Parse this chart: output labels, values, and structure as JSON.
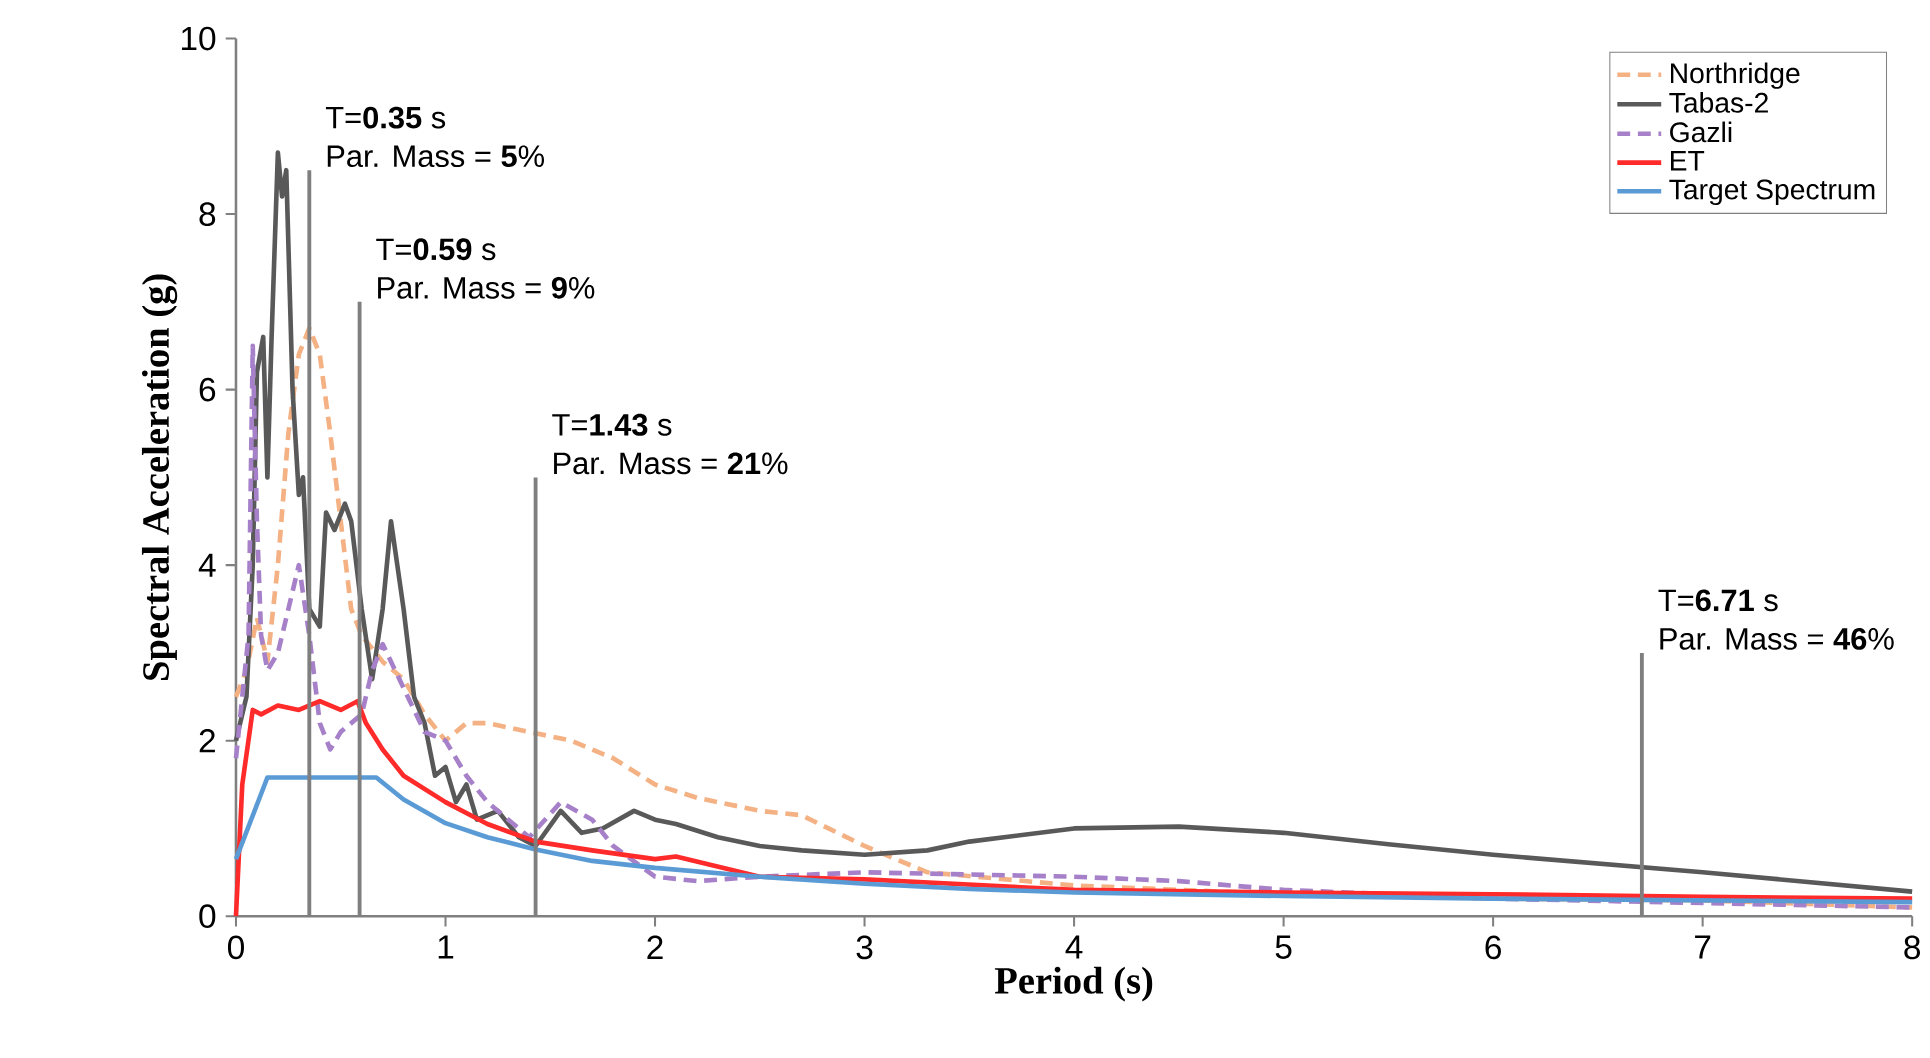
{
  "chart_data": {
    "type": "line",
    "xlabel": "Period (s)",
    "ylabel": "Spectral Acceleration (g)",
    "xlim": [
      0,
      8
    ],
    "xticks": [
      0,
      1,
      2,
      3,
      4,
      5,
      6,
      7,
      8
    ],
    "ylim": [
      0,
      10
    ],
    "yticks": [
      0,
      2,
      4,
      6,
      8,
      10
    ],
    "grid": false,
    "legend": "top right",
    "marker": "none",
    "series": [
      {
        "name": "Northridge",
        "color": "#f4b183",
        "line_style": "dashed",
        "x": [
          0,
          0.05,
          0.1,
          0.15,
          0.2,
          0.25,
          0.3,
          0.35,
          0.4,
          0.45,
          0.5,
          0.55,
          0.6,
          0.7,
          0.8,
          0.9,
          1.0,
          1.1,
          1.2,
          1.4,
          1.6,
          1.8,
          2.0,
          2.2,
          2.5,
          2.7,
          3.0,
          3.3,
          4.0,
          5.0,
          6.0,
          7.0,
          8.0
        ],
        "values": [
          2.5,
          2.8,
          3.4,
          2.9,
          4.0,
          5.5,
          6.4,
          6.7,
          6.4,
          5.5,
          4.5,
          3.5,
          3.2,
          2.9,
          2.7,
          2.3,
          2.0,
          2.2,
          2.2,
          2.1,
          2.0,
          1.8,
          1.5,
          1.35,
          1.2,
          1.15,
          0.8,
          0.5,
          0.35,
          0.25,
          0.2,
          0.18,
          0.1
        ]
      },
      {
        "name": "Tabas-2",
        "color": "#595959",
        "line_style": "solid",
        "x": [
          0,
          0.05,
          0.08,
          0.1,
          0.13,
          0.15,
          0.17,
          0.2,
          0.22,
          0.24,
          0.27,
          0.3,
          0.32,
          0.35,
          0.4,
          0.43,
          0.47,
          0.52,
          0.55,
          0.6,
          0.65,
          0.7,
          0.74,
          0.8,
          0.85,
          0.9,
          0.95,
          1.0,
          1.05,
          1.1,
          1.15,
          1.25,
          1.35,
          1.43,
          1.55,
          1.65,
          1.75,
          1.9,
          2.0,
          2.1,
          2.3,
          2.5,
          2.7,
          3.0,
          3.3,
          3.5,
          4.0,
          4.5,
          5.0,
          5.5,
          6.0,
          7.0,
          8.0
        ],
        "values": [
          2.0,
          2.5,
          4.0,
          6.2,
          6.6,
          5.0,
          6.6,
          8.7,
          8.2,
          8.5,
          6.0,
          4.8,
          5.0,
          3.5,
          3.3,
          4.6,
          4.4,
          4.7,
          4.5,
          3.5,
          2.7,
          3.5,
          4.5,
          3.5,
          2.5,
          2.2,
          1.6,
          1.7,
          1.3,
          1.5,
          1.1,
          1.2,
          0.9,
          0.8,
          1.2,
          0.95,
          1.0,
          1.2,
          1.1,
          1.05,
          0.9,
          0.8,
          0.75,
          0.7,
          0.75,
          0.85,
          1.0,
          1.02,
          0.95,
          0.82,
          0.7,
          0.5,
          0.28
        ]
      },
      {
        "name": "Gazli",
        "color": "#a680c8",
        "line_style": "dashed",
        "x": [
          0,
          0.03,
          0.06,
          0.08,
          0.1,
          0.12,
          0.15,
          0.2,
          0.25,
          0.3,
          0.35,
          0.4,
          0.45,
          0.5,
          0.6,
          0.65,
          0.7,
          0.8,
          0.9,
          1.0,
          1.1,
          1.2,
          1.3,
          1.4,
          1.55,
          1.7,
          1.8,
          2.0,
          2.2,
          2.5,
          3.0,
          4.0,
          4.5,
          5.0,
          6.0,
          7.0,
          8.0
        ],
        "values": [
          1.8,
          2.5,
          3.2,
          6.5,
          4.5,
          3.2,
          2.8,
          3.0,
          3.5,
          4.0,
          3.2,
          2.2,
          1.9,
          2.1,
          2.3,
          2.8,
          3.1,
          2.6,
          2.1,
          2.0,
          1.6,
          1.3,
          1.1,
          0.9,
          1.3,
          1.1,
          0.8,
          0.45,
          0.4,
          0.45,
          0.5,
          0.45,
          0.4,
          0.3,
          0.2,
          0.15,
          0.1
        ]
      },
      {
        "name": "ET",
        "color": "#ff2a2a",
        "line_style": "solid",
        "x": [
          0,
          0.03,
          0.08,
          0.12,
          0.2,
          0.3,
          0.4,
          0.5,
          0.58,
          0.62,
          0.7,
          0.8,
          1.0,
          1.2,
          1.43,
          1.7,
          2.0,
          2.1,
          2.5,
          3.0,
          4.0,
          5.0,
          6.0,
          7.0,
          8.0
        ],
        "values": [
          0,
          1.5,
          2.35,
          2.3,
          2.4,
          2.35,
          2.45,
          2.35,
          2.45,
          2.2,
          1.9,
          1.6,
          1.3,
          1.05,
          0.85,
          0.75,
          0.65,
          0.68,
          0.45,
          0.42,
          0.3,
          0.27,
          0.25,
          0.22,
          0.2
        ]
      },
      {
        "name": "Target Spectrum",
        "color": "#5b9bd5",
        "line_style": "solid",
        "x": [
          0,
          0.15,
          0.67,
          0.8,
          1.0,
          1.2,
          1.43,
          1.7,
          2.0,
          2.5,
          3.0,
          3.5,
          4.0,
          5.0,
          6.0,
          7.0,
          8.0
        ],
        "values": [
          0.65,
          1.58,
          1.58,
          1.33,
          1.06,
          0.9,
          0.76,
          0.63,
          0.55,
          0.45,
          0.37,
          0.31,
          0.27,
          0.23,
          0.2,
          0.18,
          0.16
        ]
      }
    ],
    "ref_lines": [
      {
        "axis": "x",
        "value": 0.35,
        "label": "T=**0.35** s",
        "color": "#7f7f7f"
      },
      {
        "axis": "x",
        "value": 0.59,
        "label": "T=**0.59** s",
        "color": "#7f7f7f"
      },
      {
        "axis": "x",
        "value": 1.43,
        "label": "T=**1.43** s",
        "color": "#7f7f7f"
      },
      {
        "axis": "x",
        "value": 6.71,
        "label": "T=**6.71** s",
        "color": "#7f7f7f"
      }
    ],
    "annotations": [
      {
        "text": "Par. Mass = **5**%",
        "x": 0.35,
        "y": 8.5
      },
      {
        "text": "Par. Mass = **9**%",
        "x": 0.59,
        "y": 7
      },
      {
        "text": "Par. Mass = **21**%",
        "x": 1.43,
        "y": 5
      },
      {
        "text": "Par. Mass = **46**%",
        "x": 6.71,
        "y": 3
      }
    ]
  }
}
